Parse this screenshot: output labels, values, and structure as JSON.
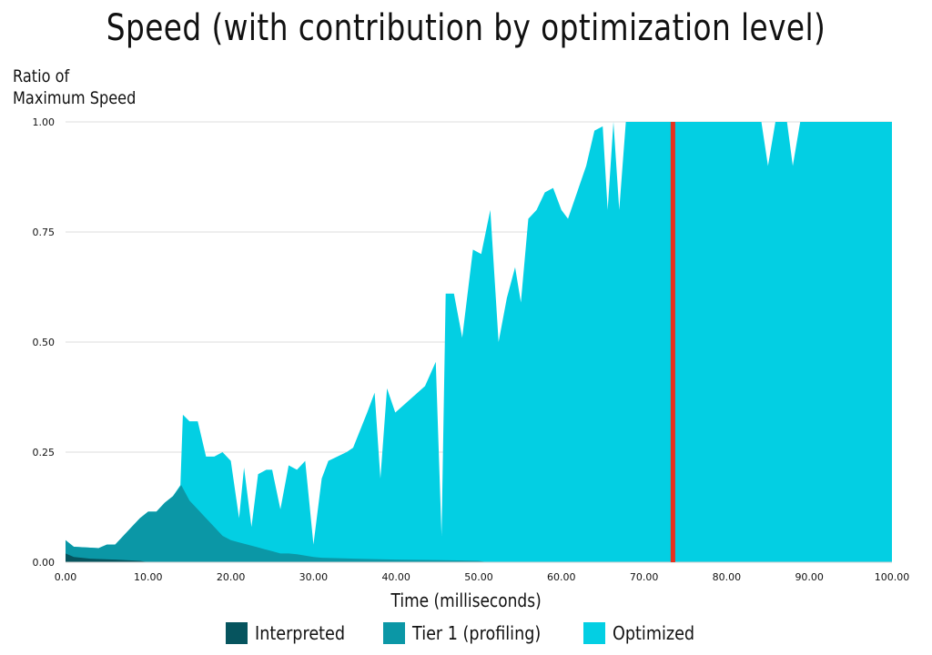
{
  "chart_data": {
    "type": "area",
    "title": "Speed (with contribution by optimization level)",
    "ylabel": "Ratio of\nMaximum Speed",
    "xlabel": "Time (milliseconds)",
    "xlim": [
      0,
      100
    ],
    "ylim": [
      0,
      1
    ],
    "x_ticks": [
      "0.00",
      "10.00",
      "20.00",
      "30.00",
      "40.00",
      "50.00",
      "60.00",
      "70.00",
      "80.00",
      "90.00",
      "100.00"
    ],
    "y_ticks": [
      "0.00",
      "0.25",
      "0.50",
      "0.75",
      "1.00"
    ],
    "grid": "horizontal",
    "legend_placement": "bottom",
    "stacked": true,
    "marker": {
      "x": 73.5,
      "color": "#e8321e"
    },
    "series": [
      {
        "name": "Interpreted",
        "color": "#06545e",
        "points": [
          [
            0,
            0.02
          ],
          [
            1,
            0.012
          ],
          [
            3,
            0.008
          ],
          [
            6,
            0.006
          ],
          [
            9,
            0.003
          ],
          [
            10,
            0
          ]
        ]
      },
      {
        "name": "Tier 1 (profiling)",
        "color": "#0b97a6",
        "points": [
          [
            0,
            0.05
          ],
          [
            1,
            0.035
          ],
          [
            3,
            0.033
          ],
          [
            4,
            0.032
          ],
          [
            5,
            0.04
          ],
          [
            6,
            0.04
          ],
          [
            8,
            0.08
          ],
          [
            9,
            0.1
          ],
          [
            10,
            0.115
          ],
          [
            11,
            0.115
          ],
          [
            12,
            0.135
          ],
          [
            13,
            0.15
          ],
          [
            14,
            0.175
          ],
          [
            15,
            0.14
          ],
          [
            16,
            0.12
          ],
          [
            17,
            0.1
          ],
          [
            18,
            0.08
          ],
          [
            19,
            0.06
          ],
          [
            20,
            0.05
          ],
          [
            21,
            0.045
          ],
          [
            22,
            0.04
          ],
          [
            23,
            0.035
          ],
          [
            24,
            0.03
          ],
          [
            25,
            0.025
          ],
          [
            26,
            0.02
          ],
          [
            27,
            0.02
          ],
          [
            28,
            0.018
          ],
          [
            29,
            0.015
          ],
          [
            30,
            0.012
          ],
          [
            31,
            0.01
          ],
          [
            35,
            0.008
          ],
          [
            40,
            0.006
          ],
          [
            45,
            0.005
          ],
          [
            50,
            0.003
          ],
          [
            51,
            0
          ]
        ]
      },
      {
        "name": "Optimized",
        "color": "#03cfe3",
        "points": [
          [
            0,
            0.05
          ],
          [
            1,
            0.035
          ],
          [
            3,
            0.033
          ],
          [
            4,
            0.032
          ],
          [
            5,
            0.04
          ],
          [
            6,
            0.04
          ],
          [
            8,
            0.08
          ],
          [
            9,
            0.1
          ],
          [
            10,
            0.115
          ],
          [
            11,
            0.115
          ],
          [
            12,
            0.135
          ],
          [
            13,
            0.15
          ],
          [
            13.9,
            0.175
          ],
          [
            14.2,
            0.335
          ],
          [
            15,
            0.32
          ],
          [
            16,
            0.32
          ],
          [
            17,
            0.24
          ],
          [
            18,
            0.24
          ],
          [
            19,
            0.25
          ],
          [
            20,
            0.23
          ],
          [
            21,
            0.1
          ],
          [
            21.6,
            0.215
          ],
          [
            22.5,
            0.08
          ],
          [
            23.3,
            0.2
          ],
          [
            24.3,
            0.21
          ],
          [
            25,
            0.21
          ],
          [
            26,
            0.12
          ],
          [
            27,
            0.22
          ],
          [
            28,
            0.21
          ],
          [
            29,
            0.23
          ],
          [
            30,
            0.04
          ],
          [
            31,
            0.19
          ],
          [
            31.8,
            0.23
          ],
          [
            34,
            0.25
          ],
          [
            34.8,
            0.26
          ],
          [
            36.5,
            0.34
          ],
          [
            37.4,
            0.385
          ],
          [
            38.1,
            0.19
          ],
          [
            38.9,
            0.395
          ],
          [
            39.9,
            0.34
          ],
          [
            43.5,
            0.4
          ],
          [
            44.8,
            0.455
          ],
          [
            45.5,
            0.06
          ],
          [
            46,
            0.61
          ],
          [
            47,
            0.61
          ],
          [
            48,
            0.51
          ],
          [
            49.3,
            0.71
          ],
          [
            50.3,
            0.7
          ],
          [
            51.4,
            0.8
          ],
          [
            52.4,
            0.5
          ],
          [
            53.4,
            0.6
          ],
          [
            54.4,
            0.67
          ],
          [
            55.1,
            0.59
          ],
          [
            56,
            0.78
          ],
          [
            57,
            0.8
          ],
          [
            58,
            0.84
          ],
          [
            59,
            0.85
          ],
          [
            60,
            0.8
          ],
          [
            60.8,
            0.78
          ],
          [
            63,
            0.9
          ],
          [
            64,
            0.98
          ],
          [
            65,
            0.99
          ],
          [
            65.6,
            0.8
          ],
          [
            66.3,
            1.0
          ],
          [
            67,
            0.8
          ],
          [
            67.8,
            1.0
          ],
          [
            84.2,
            1.0
          ],
          [
            85,
            0.9
          ],
          [
            85.9,
            1.0
          ],
          [
            87.3,
            1.0
          ],
          [
            88,
            0.9
          ],
          [
            88.9,
            1.0
          ],
          [
            100,
            1.0
          ]
        ]
      }
    ]
  }
}
